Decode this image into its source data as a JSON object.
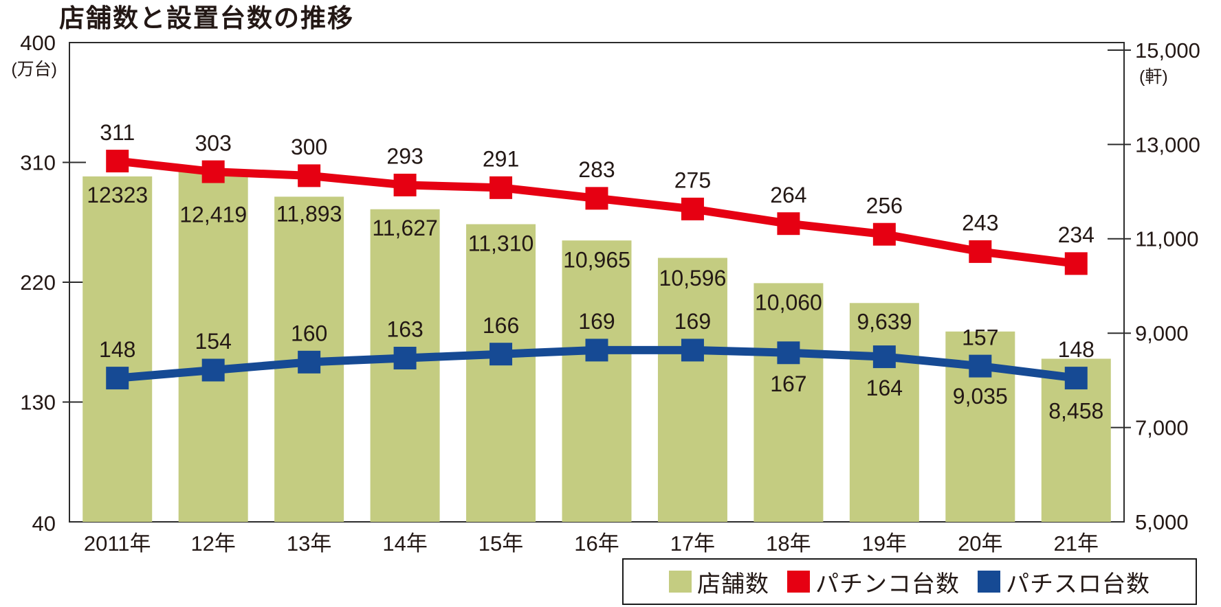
{
  "title": "店舗数と設置台数の推移",
  "colors": {
    "bar": "#c4cc81",
    "pachinko_line": "#e60012",
    "pachislot_line": "#164a94",
    "text": "#231815",
    "axis": "#2b2b2b"
  },
  "chart_data": {
    "type": "bar",
    "subtype": "bar+line combo, dual axis",
    "title": "店舗数と設置台数の推移",
    "categories": [
      "2011年",
      "12年",
      "13年",
      "14年",
      "15年",
      "16年",
      "17年",
      "18年",
      "19年",
      "20年",
      "21年"
    ],
    "left_axis": {
      "unit": "(万台)",
      "min": 40,
      "max": 400,
      "ticks": [
        {
          "v": 400,
          "label": "400"
        },
        {
          "v": 310,
          "label": "310"
        },
        {
          "v": 220,
          "label": "220"
        },
        {
          "v": 130,
          "label": "130"
        },
        {
          "v": 40,
          "label": "40"
        }
      ]
    },
    "right_axis": {
      "unit": "(軒)",
      "min": 5000,
      "max": 15000,
      "ticks": [
        {
          "v": 15000,
          "label": "15,000"
        },
        {
          "v": 13000,
          "label": "13,000"
        },
        {
          "v": 11000,
          "label": "11,000"
        },
        {
          "v": 9000,
          "label": "9,000"
        },
        {
          "v": 7000,
          "label": "7,000"
        },
        {
          "v": 5000,
          "label": "5,000"
        }
      ]
    },
    "series": [
      {
        "name": "店舗数",
        "kind": "bar",
        "axis": "right",
        "color": "#c4cc81",
        "values": [
          12323,
          12419,
          11893,
          11627,
          11310,
          10965,
          10596,
          10060,
          9639,
          9035,
          8458
        ],
        "labels": [
          "12323",
          "12,419",
          "11,893",
          "11,627",
          "11,310",
          "10,965",
          "10,596",
          "10,060",
          "9,639",
          "9,035",
          "8,458"
        ],
        "label_dy": [
          27,
          62,
          25,
          27,
          28,
          28,
          29,
          28,
          27,
          94,
          76
        ]
      },
      {
        "name": "パチンコ台数",
        "kind": "line",
        "axis": "left",
        "color": "#e60012",
        "values": [
          311,
          303,
          300,
          293,
          291,
          283,
          275,
          264,
          256,
          243,
          234
        ],
        "labels": [
          "311",
          "303",
          "300",
          "293",
          "291",
          "283",
          "275",
          "264",
          "256",
          "243",
          "234"
        ],
        "label_side": [
          "above",
          "above",
          "above",
          "above",
          "above",
          "above",
          "above",
          "above",
          "above",
          "above",
          "above"
        ]
      },
      {
        "name": "パチスロ台数",
        "kind": "line",
        "axis": "left",
        "color": "#164a94",
        "values": [
          148,
          154,
          160,
          163,
          166,
          169,
          169,
          167,
          164,
          157,
          148
        ],
        "labels": [
          "148",
          "154",
          "160",
          "163",
          "166",
          "169",
          "169",
          "167",
          "164",
          "157",
          "148"
        ],
        "label_side": [
          "above",
          "above",
          "above",
          "above",
          "above",
          "above",
          "above",
          "below",
          "below",
          "above",
          "above"
        ]
      }
    ],
    "legend_position": "bottom-right",
    "grid": false
  }
}
